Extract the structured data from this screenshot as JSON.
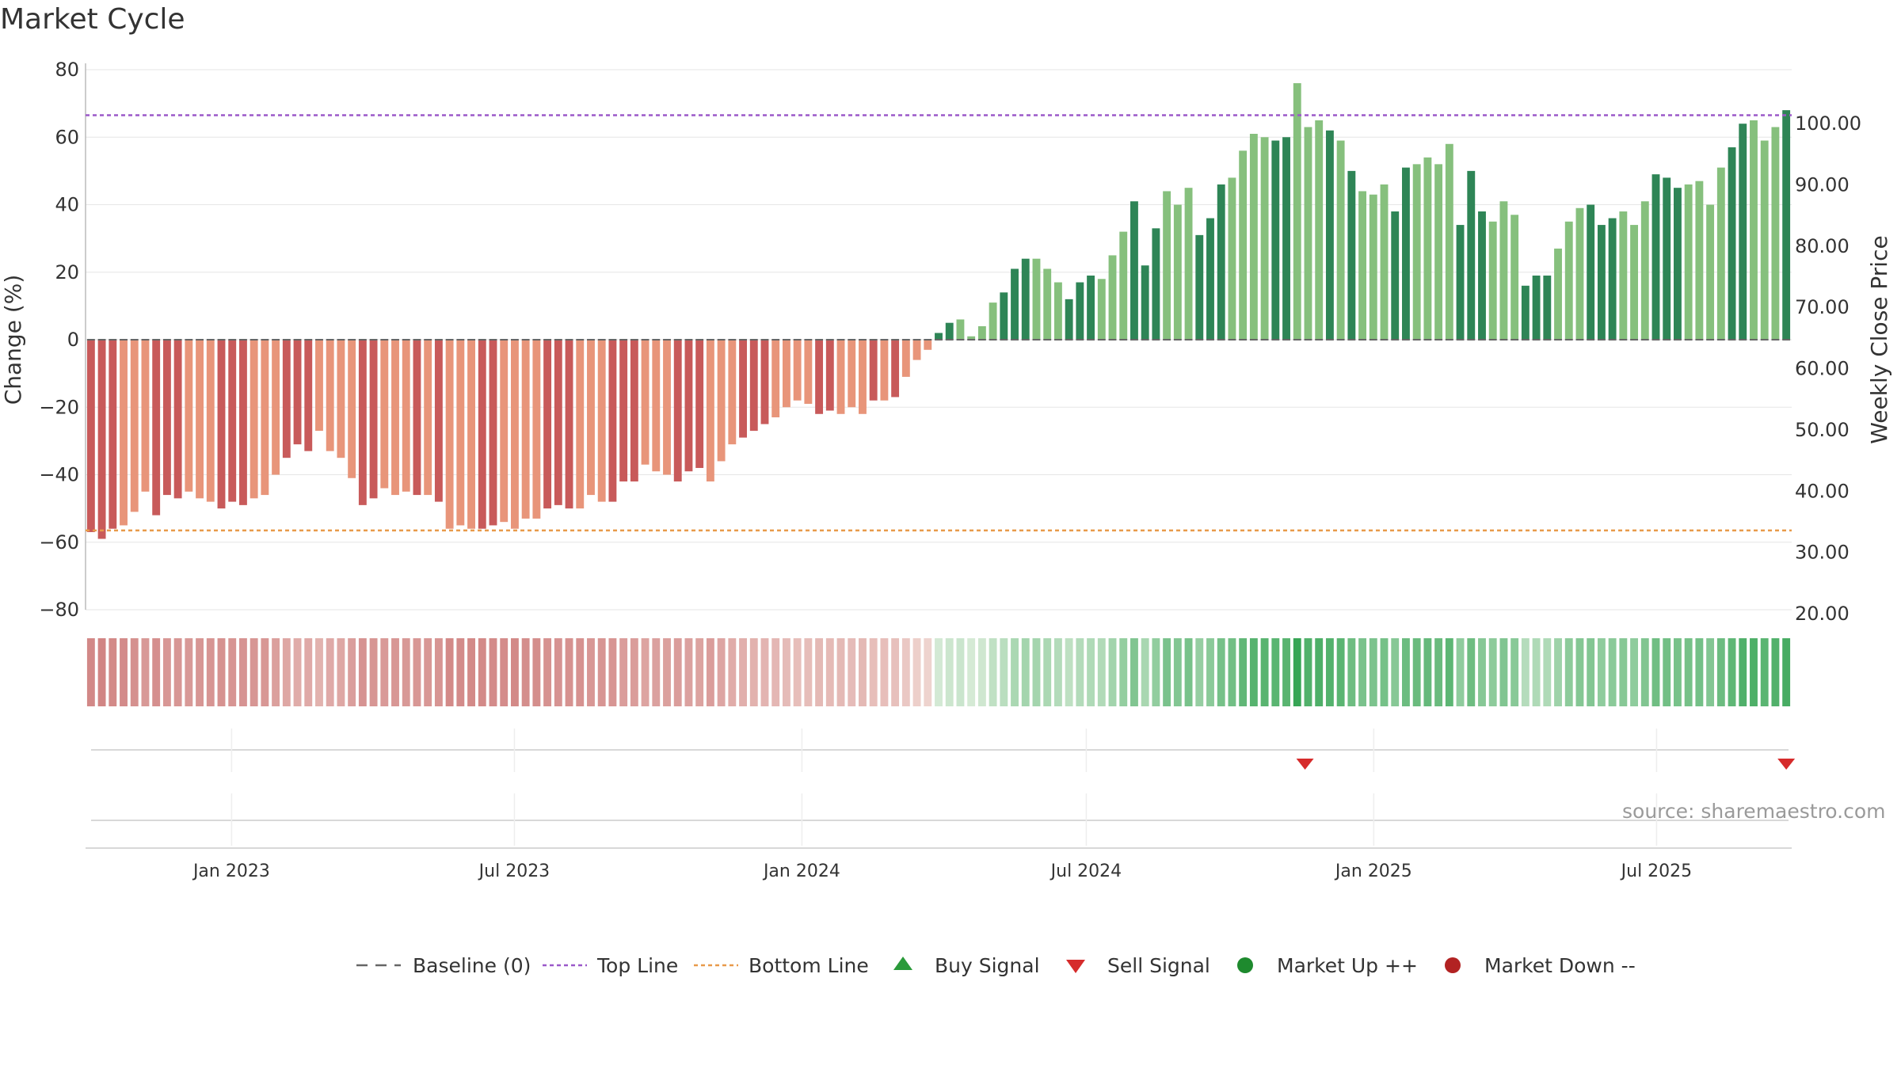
{
  "chart_data": {
    "type": "bar",
    "title": "Market Cycle",
    "ylabel_left": "Change (%)",
    "ylabel_right": "Weekly Close Price",
    "ylim_left": [
      -80,
      80
    ],
    "yticks_left": [
      80,
      60,
      40,
      20,
      0,
      -20,
      -40,
      -60,
      -80
    ],
    "ytick_labels_left": [
      "80",
      "60",
      "40",
      "20",
      "0",
      "−20",
      "−40",
      "−60",
      "−80"
    ],
    "ytick_labels_right": [
      "100.00",
      "90.00",
      "80.00",
      "70.00",
      "60.00",
      "50.00",
      "40.00",
      "30.00",
      "20.00"
    ],
    "yticks_right": [
      100,
      90,
      80,
      70,
      60,
      50,
      40,
      30,
      20
    ],
    "x_start": "2022-10-03",
    "x_end": "2025-09-22",
    "x_ticks": [
      "2023-01-01",
      "2023-07-01",
      "2024-01-01",
      "2024-07-01",
      "2025-01-01",
      "2025-07-01"
    ],
    "x_tick_labels": [
      "Jan 2023",
      "Jul 2023",
      "Jan 2024",
      "Jul 2024",
      "Jan 2025",
      "Jul 2025"
    ],
    "top_line": 66.5,
    "bottom_line": -56.5,
    "baseline": 0,
    "grid": true,
    "values": [
      -57,
      -59,
      -56,
      -55,
      -51,
      -45,
      -52,
      -46,
      -47,
      -45,
      -47,
      -48,
      -50,
      -48,
      -49,
      -47,
      -46,
      -40,
      -35,
      -31,
      -33,
      -27,
      -33,
      -35,
      -41,
      -49,
      -47,
      -44,
      -46,
      -45,
      -46,
      -46,
      -48,
      -56,
      -55,
      -56,
      -56,
      -55,
      -54,
      -56,
      -53,
      -53,
      -50,
      -49,
      -50,
      -50,
      -46,
      -48,
      -48,
      -42,
      -42,
      -37,
      -39,
      -40,
      -42,
      -39,
      -38,
      -42,
      -36,
      -31,
      -29,
      -27,
      -25,
      -23,
      -20,
      -18,
      -19,
      -22,
      -21,
      -22,
      -20,
      -22,
      -18,
      -18,
      -17,
      -11,
      -6,
      -3,
      2,
      5,
      6,
      1,
      4,
      11,
      14,
      21,
      24,
      24,
      21,
      17,
      12,
      17,
      19,
      18,
      25,
      32,
      41,
      22,
      33,
      44,
      40,
      45,
      31,
      36,
      46,
      48,
      56,
      61,
      60,
      59,
      60,
      76,
      63,
      65,
      62,
      59,
      50,
      44,
      43,
      46,
      38,
      51,
      52,
      54,
      52,
      58,
      34,
      50,
      38,
      35,
      41,
      37,
      16,
      19,
      19,
      27,
      35,
      39,
      40,
      34,
      36,
      38,
      34,
      41,
      49,
      48,
      45,
      46,
      47,
      40,
      51,
      57,
      64,
      65,
      59,
      63,
      68
    ],
    "bar_colors_note": "red/orange below zero, green above zero",
    "market_state_strip": "red shades fading to pale, then green shades",
    "sell_signals": [
      "2024-11-18",
      "2025-09-22"
    ],
    "buy_signals": [],
    "legend": [
      "Baseline (0)",
      "Top Line",
      "Bottom Line",
      "Buy Signal",
      "Sell Signal",
      "Market Up ++",
      "Market Down --"
    ],
    "legend_placement": "bottom-center",
    "source": "source: sharemaestro.com"
  },
  "colors": {
    "down_dark": "#c85a5a",
    "down_light": "#e8957a",
    "up_dark": "#2e8556",
    "up_light": "#86c07d",
    "top_line": "#9b59c9",
    "bottom_line": "#e89a4a",
    "buy": "#2a9a3a",
    "sell": "#d62b2b",
    "market_up": "#1e8a2e",
    "market_down": "#b22222",
    "grid": "#e6e6e6"
  }
}
